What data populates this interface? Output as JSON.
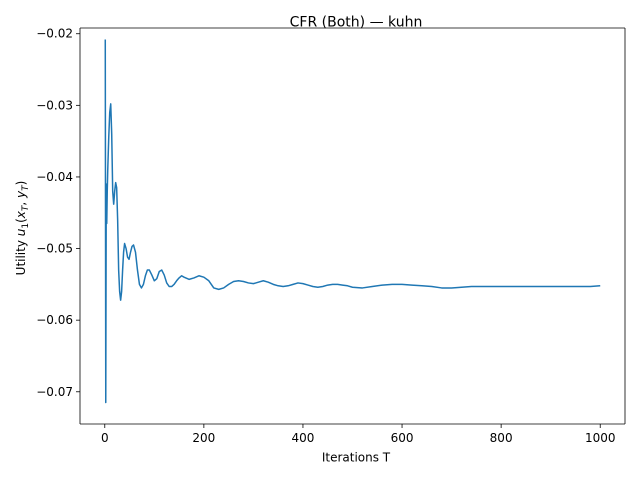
{
  "chart_data": {
    "type": "line",
    "title": "CFR (Both) — kuhn",
    "xlabel": "Iterations T",
    "ylabel_prefix": "Utility ",
    "ylabel_math": {
      "u": "u",
      "u_sub": "1",
      "open": "(",
      "x": "x",
      "x_sub": "T",
      "comma": ", ",
      "y": "y",
      "y_sub": "T",
      "close": ")"
    },
    "xlim": [
      -50,
      1050
    ],
    "ylim": [
      -0.0745,
      -0.0192
    ],
    "xticks": [
      {
        "value": 0,
        "label": "0"
      },
      {
        "value": 200,
        "label": "200"
      },
      {
        "value": 400,
        "label": "400"
      },
      {
        "value": 600,
        "label": "600"
      },
      {
        "value": 800,
        "label": "800"
      },
      {
        "value": 1000,
        "label": "1000"
      }
    ],
    "yticks": [
      {
        "value": -0.02,
        "label": "−0.02"
      },
      {
        "value": -0.03,
        "label": "−0.03"
      },
      {
        "value": -0.04,
        "label": "−0.04"
      },
      {
        "value": -0.05,
        "label": "−0.05"
      },
      {
        "value": -0.06,
        "label": "−0.06"
      },
      {
        "value": -0.07,
        "label": "−0.07"
      }
    ],
    "grid": false,
    "legend": "none",
    "series": [
      {
        "color": "#1f77b4",
        "x": [
          1,
          2,
          3,
          4,
          5,
          6,
          8,
          10,
          12,
          14,
          16,
          18,
          20,
          22,
          24,
          26,
          28,
          30,
          32,
          34,
          36,
          38,
          40,
          43,
          46,
          49,
          52,
          55,
          58,
          62,
          66,
          70,
          74,
          78,
          82,
          86,
          90,
          95,
          100,
          105,
          110,
          115,
          120,
          125,
          130,
          135,
          140,
          145,
          150,
          155,
          160,
          170,
          180,
          190,
          200,
          210,
          220,
          230,
          240,
          250,
          260,
          270,
          280,
          290,
          300,
          310,
          320,
          330,
          340,
          350,
          360,
          370,
          380,
          390,
          400,
          410,
          420,
          430,
          440,
          450,
          460,
          470,
          480,
          490,
          500,
          520,
          540,
          560,
          580,
          600,
          620,
          640,
          660,
          680,
          700,
          720,
          740,
          760,
          780,
          800,
          820,
          840,
          860,
          880,
          900,
          920,
          940,
          960,
          980,
          1000
        ],
        "y": [
          -0.0208,
          -0.0715,
          -0.041,
          -0.0465,
          -0.042,
          -0.039,
          -0.0345,
          -0.031,
          -0.0298,
          -0.034,
          -0.042,
          -0.0438,
          -0.042,
          -0.0408,
          -0.0415,
          -0.046,
          -0.053,
          -0.056,
          -0.0572,
          -0.056,
          -0.053,
          -0.0505,
          -0.0493,
          -0.05,
          -0.0512,
          -0.0515,
          -0.0505,
          -0.0497,
          -0.0495,
          -0.0505,
          -0.053,
          -0.055,
          -0.0555,
          -0.055,
          -0.0538,
          -0.053,
          -0.053,
          -0.0537,
          -0.0545,
          -0.0542,
          -0.0532,
          -0.053,
          -0.0537,
          -0.0548,
          -0.0553,
          -0.0553,
          -0.055,
          -0.0545,
          -0.0541,
          -0.0538,
          -0.054,
          -0.0543,
          -0.0541,
          -0.0538,
          -0.054,
          -0.0545,
          -0.0555,
          -0.0557,
          -0.0555,
          -0.055,
          -0.0546,
          -0.0545,
          -0.0546,
          -0.0548,
          -0.0549,
          -0.0547,
          -0.0545,
          -0.0547,
          -0.055,
          -0.0552,
          -0.0553,
          -0.0552,
          -0.055,
          -0.0548,
          -0.0549,
          -0.0551,
          -0.0553,
          -0.0554,
          -0.0553,
          -0.0551,
          -0.055,
          -0.055,
          -0.0551,
          -0.0552,
          -0.0554,
          -0.0555,
          -0.0553,
          -0.0551,
          -0.055,
          -0.055,
          -0.0551,
          -0.0552,
          -0.0553,
          -0.0555,
          -0.0555,
          -0.0554,
          -0.0553,
          -0.0553,
          -0.0553,
          -0.0553,
          -0.0553,
          -0.0553,
          -0.0553,
          -0.0553,
          -0.0553,
          -0.0553,
          -0.0553,
          -0.0553,
          -0.0553,
          -0.0552
        ]
      }
    ]
  }
}
